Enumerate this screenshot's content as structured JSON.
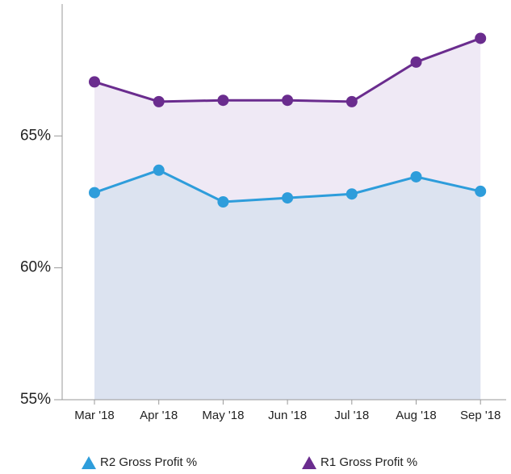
{
  "chart_data": {
    "type": "area",
    "categories": [
      "Mar '18",
      "Apr '18",
      "May '18",
      "Jun '18",
      "Jul '18",
      "Aug '18",
      "Sep '18"
    ],
    "series": [
      {
        "name": "R1 Gross Profit %",
        "color": "#6a2c8e",
        "fill": "#efe9f5",
        "values": [
          67.05,
          66.3,
          66.35,
          66.35,
          66.3,
          67.8,
          68.7
        ]
      },
      {
        "name": "R2 Gross Profit %",
        "color": "#2e9ddb",
        "fill": "#dce3f0",
        "values": [
          62.85,
          63.7,
          62.5,
          62.65,
          62.8,
          63.45,
          62.9
        ]
      }
    ],
    "ylim": [
      55,
      70
    ],
    "yticks": [
      {
        "value": 55,
        "label": "55%"
      },
      {
        "value": 60,
        "label": "60%"
      },
      {
        "value": 65,
        "label": "65%"
      }
    ],
    "legend": "bottom"
  }
}
